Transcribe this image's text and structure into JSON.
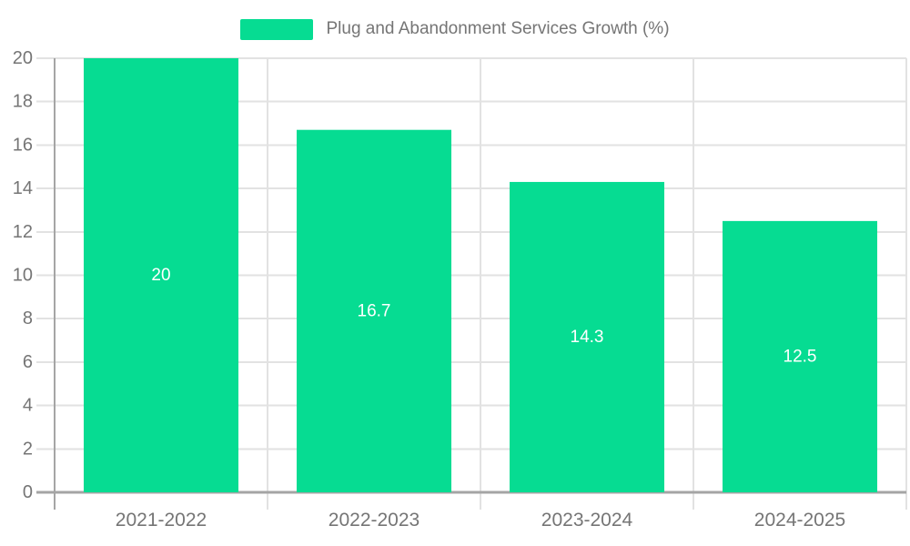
{
  "legend": {
    "label": "Plug and Abandonment Services Growth (%)",
    "marker_color": "#06DC92"
  },
  "chart_data": {
    "type": "bar",
    "title": "",
    "categories": [
      "2021-2022",
      "2022-2023",
      "2023-2024",
      "2024-2025"
    ],
    "series": [
      {
        "name": "Plug and Abandonment Services Growth (%)",
        "values": [
          20,
          16.7,
          14.3,
          12.5
        ],
        "value_labels": [
          "20",
          "16.7",
          "14.3",
          "12.5"
        ],
        "color": "#06DC92"
      }
    ],
    "xlabel": "",
    "ylabel": "",
    "ylim": [
      0,
      20
    ],
    "ytick_step": 2,
    "ytick_labels": [
      "0",
      "2",
      "4",
      "6",
      "8",
      "10",
      "12",
      "14",
      "16",
      "18",
      "20"
    ],
    "grid": true,
    "legend_position": "top",
    "colors": {
      "bar": "#06DC92",
      "value_label": "#ffffff",
      "axis_label": "#757575",
      "axis_line": "#A5A5A5",
      "grid_line": "#E2E2E2",
      "background": "#ffffff"
    }
  }
}
